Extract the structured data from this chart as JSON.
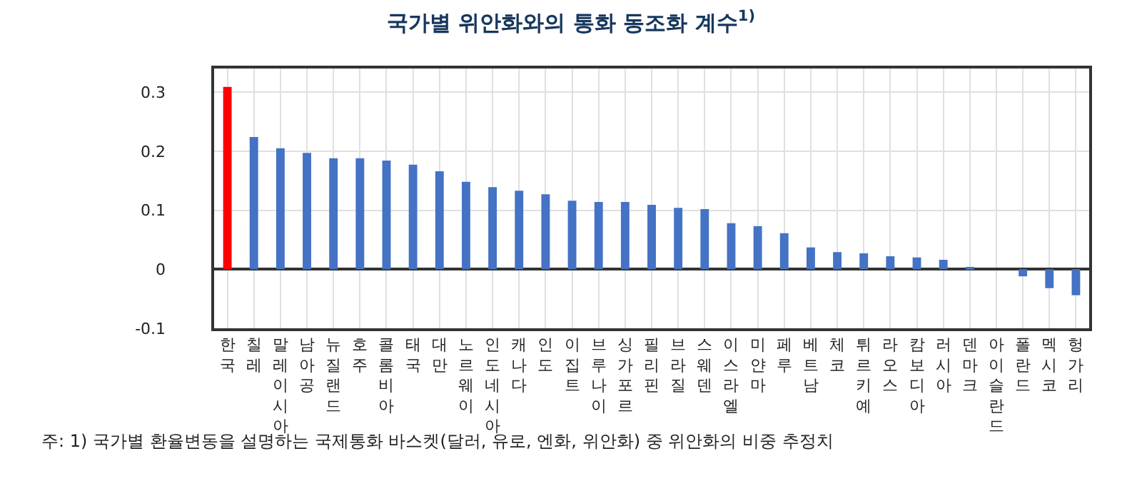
{
  "chart_data": {
    "type": "bar",
    "title": "국가별 위안화와의 통화 동조화 계수$^{1)}$",
    "categories": [
      "한국",
      "칠레",
      "말레이시아",
      "남아공",
      "뉴질랜드",
      "호주",
      "콜롬비아",
      "태국",
      "대만",
      "노르웨이",
      "인도네시아",
      "캐나다",
      "인도",
      "이집트",
      "브루나이",
      "싱가포르",
      "필리핀",
      "브라질",
      "스웨덴",
      "이스라엘",
      "미얀마",
      "페루",
      "베트남",
      "체코",
      "튀르키예",
      "라오스",
      "캄보디아",
      "러시아",
      "덴마크",
      "아이슬란드",
      "폴란드",
      "멕시코",
      "헝가리"
    ],
    "values": [
      0.309,
      0.224,
      0.205,
      0.197,
      0.188,
      0.188,
      0.184,
      0.177,
      0.166,
      0.148,
      0.139,
      0.133,
      0.127,
      0.116,
      0.114,
      0.114,
      0.109,
      0.104,
      0.102,
      0.078,
      0.073,
      0.061,
      0.037,
      0.029,
      0.027,
      0.022,
      0.02,
      0.016,
      0.002,
      0,
      -0.012,
      -0.032,
      -0.044
    ],
    "colors": [
      "#ff0000",
      "#4472c4",
      "#4472c4",
      "#4472c4",
      "#4472c4",
      "#4472c4",
      "#4472c4",
      "#4472c4",
      "#4472c4",
      "#4472c4",
      "#4472c4",
      "#4472c4",
      "#4472c4",
      "#4472c4",
      "#4472c4",
      "#4472c4",
      "#4472c4",
      "#4472c4",
      "#4472c4",
      "#4472c4",
      "#4472c4",
      "#4472c4",
      "#4472c4",
      "#4472c4",
      "#4472c4",
      "#4472c4",
      "#4472c4",
      "#4472c4",
      "#4472c4",
      "#4472c4",
      "#4472c4",
      "#4472c4",
      "#4472c4"
    ],
    "ylim": [
      -0.1,
      0.34
    ],
    "yticks": [
      -0.1,
      0,
      0.1,
      0.2,
      0.3
    ],
    "grid": true,
    "annotations": [
      "주: 1) 국가별 환율변동을 설명하는 국제통화 바스켓(달러, 유로, 엔화, 위안화) 중 위안화의 비중 추정치"
    ]
  }
}
